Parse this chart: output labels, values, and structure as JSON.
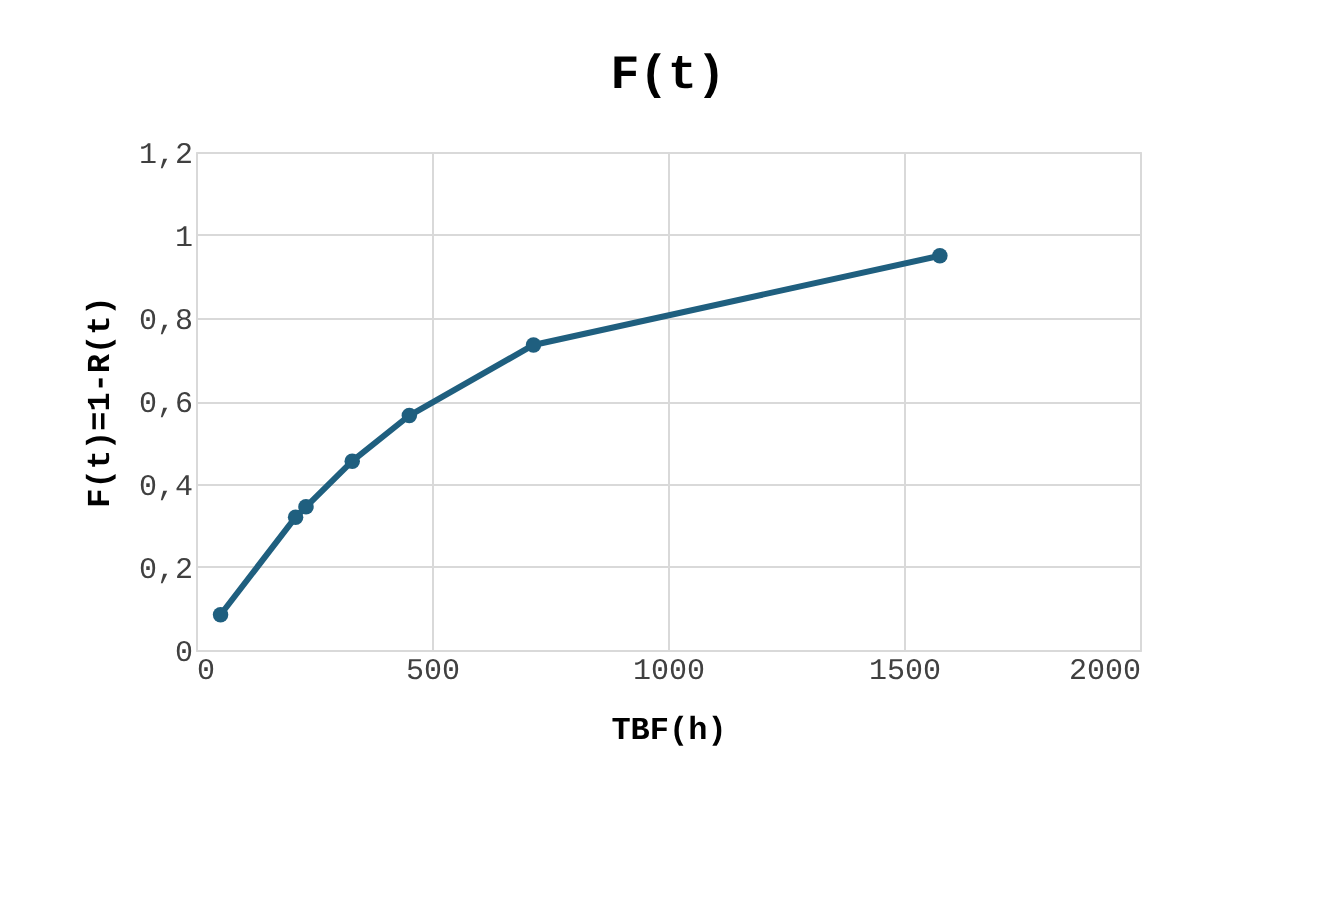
{
  "chart_data": {
    "type": "line",
    "title": "F(t)",
    "xlabel": "TBF(h)",
    "ylabel": "F(t)=1-R(t)",
    "x": [
      52,
      211,
      233,
      331,
      452,
      715,
      1576
    ],
    "series": [
      {
        "color": "#1f5f7f",
        "values": [
          0.085,
          0.32,
          0.345,
          0.455,
          0.565,
          0.735,
          0.95
        ]
      }
    ],
    "xlim": [
      0,
      2000
    ],
    "xticks": [
      0,
      500,
      1000,
      1500,
      2000
    ],
    "ylim": [
      0,
      1.2
    ],
    "yticks": [
      0,
      {
        "value": 0.2,
        "label": "0,2"
      },
      {
        "value": 0.4,
        "label": "0,4"
      },
      {
        "value": 0.6,
        "label": "0,6"
      },
      {
        "value": 0.8,
        "label": "0,8"
      },
      1,
      {
        "value": 1.2,
        "label": "1,2"
      }
    ],
    "grid": true,
    "marker": "circle",
    "line_style": "solid"
  }
}
